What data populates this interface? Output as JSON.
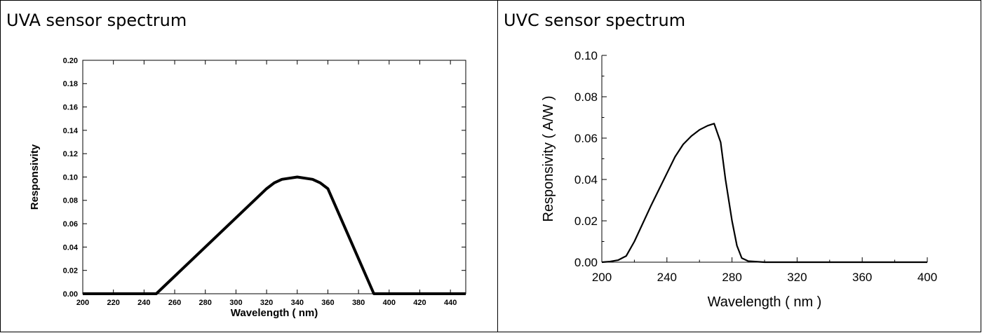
{
  "panels": {
    "left": {
      "title": "UVA sensor spectrum"
    },
    "right": {
      "title": "UVC sensor spectrum"
    }
  },
  "colors": {
    "line": "#000000",
    "background": "#ffffff"
  },
  "chart_data": [
    {
      "type": "line",
      "title": "",
      "xlabel": "Wavelength ( nm)",
      "ylabel": "Responsivity",
      "xlim": [
        200,
        450
      ],
      "ylim": [
        0,
        0.2
      ],
      "x_ticks": [
        "200",
        "220",
        "240",
        "260",
        "280",
        "300",
        "320",
        "340",
        "360",
        "380",
        "400",
        "420",
        "440"
      ],
      "y_ticks": [
        "0.00",
        "0.02",
        "0.04",
        "0.06",
        "0.08",
        "0.10",
        "0.12",
        "0.14",
        "0.16",
        "0.18",
        "0.20"
      ],
      "grid": false,
      "series": [
        {
          "x": [
            200,
            248,
            320,
            325,
            330,
            340,
            350,
            355,
            360,
            390,
            450
          ],
          "y": [
            0,
            0,
            0.09,
            0.095,
            0.098,
            0.1,
            0.098,
            0.095,
            0.09,
            0,
            0
          ]
        }
      ]
    },
    {
      "type": "line",
      "title": "",
      "xlabel": "Wavelength ( nm )",
      "ylabel": "Responsivity ( A/W )",
      "xlim": [
        200,
        400
      ],
      "ylim": [
        0,
        0.1
      ],
      "x_ticks": [
        "200",
        "240",
        "280",
        "320",
        "360",
        "400"
      ],
      "y_ticks": [
        "0.00",
        "0.02",
        "0.04",
        "0.06",
        "0.08",
        "0.10"
      ],
      "grid": false,
      "series": [
        {
          "x": [
            200,
            205,
            210,
            215,
            220,
            230,
            240,
            245,
            250,
            255,
            260,
            265,
            269,
            273,
            276,
            280,
            283,
            286,
            290,
            300,
            400
          ],
          "y": [
            0,
            0.0003,
            0.001,
            0.003,
            0.01,
            0.027,
            0.043,
            0.051,
            0.057,
            0.061,
            0.064,
            0.066,
            0.067,
            0.058,
            0.04,
            0.02,
            0.008,
            0.002,
            0.0005,
            0,
            0
          ]
        }
      ]
    }
  ]
}
